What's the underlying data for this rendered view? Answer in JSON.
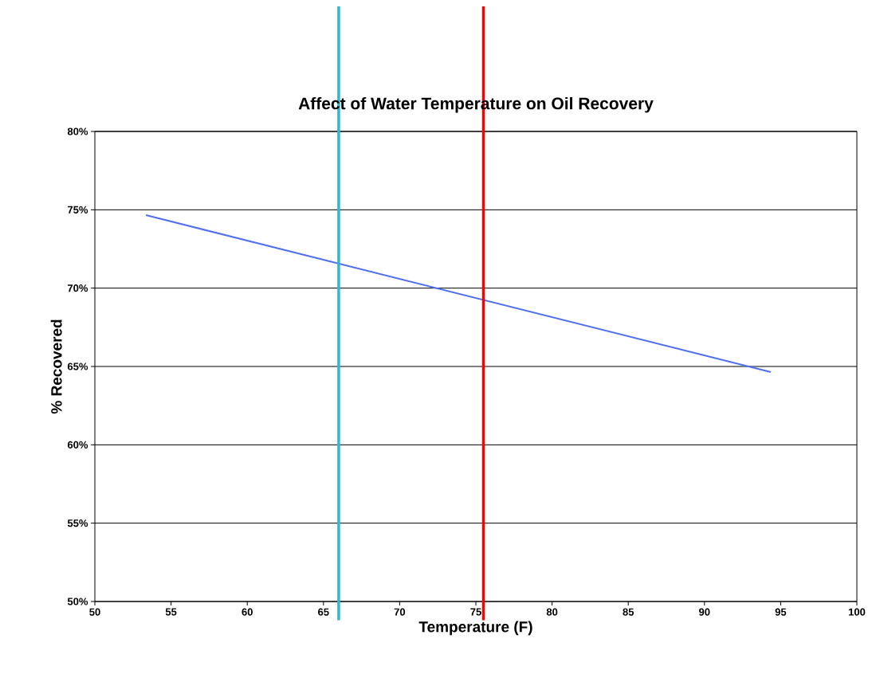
{
  "chart_data": {
    "type": "line",
    "title": "Affect of Water Temperature on Oil Recovery",
    "xlabel": "Temperature (F)",
    "ylabel": "% Recovered",
    "series": [
      {
        "color": "#4f6ff0",
        "x": [
          53.35,
          94.35
        ],
        "values": [
          74.66,
          64.64
        ]
      }
    ],
    "xlim": [
      50,
      100
    ],
    "xticks": [
      50,
      55,
      60,
      65,
      70,
      75,
      80,
      85,
      90,
      95,
      100
    ],
    "ylim": [
      50,
      80
    ],
    "yticks": [
      {
        "value": 50,
        "label": "50%"
      },
      {
        "value": 55,
        "label": "55%"
      },
      {
        "value": 60,
        "label": "60%"
      },
      {
        "value": 65,
        "label": "65%"
      },
      {
        "value": 70,
        "label": "70%"
      },
      {
        "value": 75,
        "label": "75%"
      },
      {
        "value": 80,
        "label": "80%"
      }
    ],
    "grid": "y",
    "marker": "none",
    "line_style": "solid",
    "ref_lines": [
      {
        "axis": "x",
        "value": 66,
        "color": "#2fb8d0"
      },
      {
        "axis": "x",
        "value": 75.5,
        "color": "#ff0000"
      }
    ]
  }
}
